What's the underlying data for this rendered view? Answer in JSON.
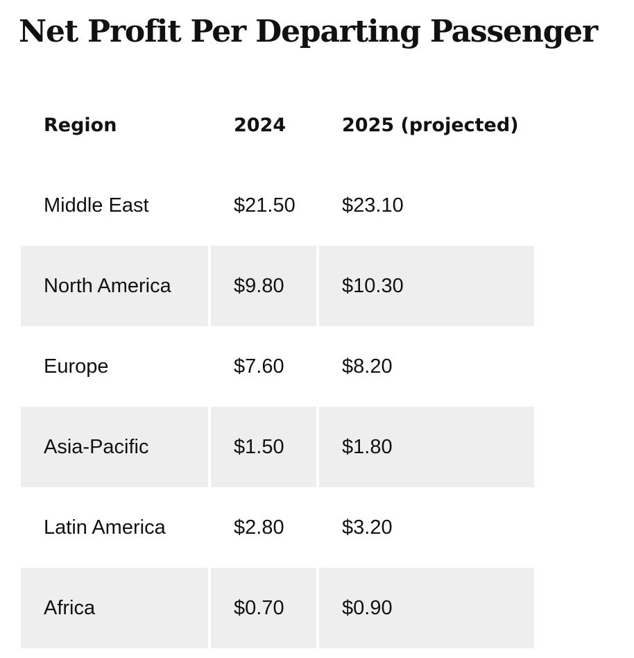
{
  "title": "Net Profit Per Departing Passenger",
  "table": {
    "headers": [
      "Region",
      "2024",
      "2025 (projected)"
    ],
    "rows": [
      [
        "Middle East",
        "$21.50",
        "$23.10"
      ],
      [
        "North America",
        "$9.80",
        "$10.30"
      ],
      [
        "Europe",
        "$7.60",
        "$8.20"
      ],
      [
        "Asia-Pacific",
        "$1.50",
        "$1.80"
      ],
      [
        "Latin America",
        "$2.80",
        "$3.20"
      ],
      [
        "Africa",
        "$0.70",
        "$0.90"
      ]
    ]
  },
  "colors": {
    "stripe": "#eeeeee",
    "text": "#111111",
    "background": "#ffffff"
  }
}
